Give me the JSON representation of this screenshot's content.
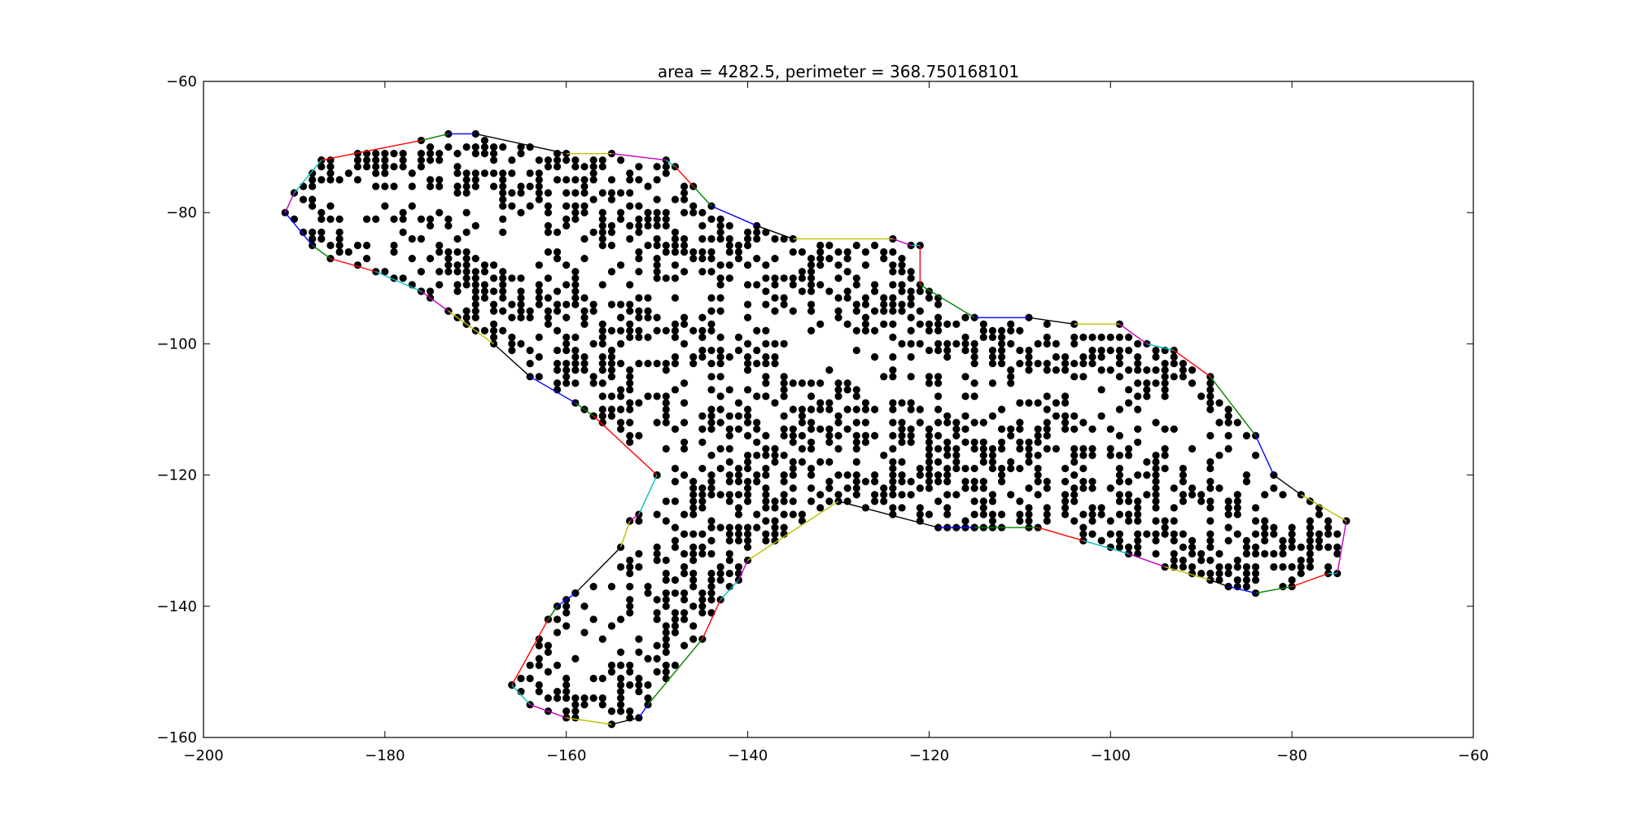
{
  "chart_data": {
    "type": "scatter",
    "title": "area = 4282.5, perimeter = 368.750168101",
    "xlabel": "",
    "ylabel": "",
    "xlim": [
      -200,
      -60
    ],
    "ylim": [
      -160,
      -60
    ],
    "x_ticks": [
      -200,
      -180,
      -160,
      -140,
      -120,
      -100,
      -80,
      -60
    ],
    "y_ticks": [
      -60,
      -80,
      -100,
      -120,
      -140,
      -160
    ],
    "grid": false,
    "point_color": "#000000",
    "edge_color_cycle": [
      "#0000ff",
      "#008000",
      "#ff0000",
      "#00bfbf",
      "#bf00bf",
      "#bfbf00",
      "#000000"
    ],
    "hull": [
      [
        -191,
        -80
      ],
      [
        -188,
        -85
      ],
      [
        -186,
        -87
      ],
      [
        -181,
        -89
      ],
      [
        -176,
        -92
      ],
      [
        -173,
        -95
      ],
      [
        -168,
        -100
      ],
      [
        -164,
        -105
      ],
      [
        -159,
        -109
      ],
      [
        -157,
        -111
      ],
      [
        -150,
        -120
      ],
      [
        -152,
        -126
      ],
      [
        -153,
        -127
      ],
      [
        -154,
        -131
      ],
      [
        -159,
        -138
      ],
      [
        -161,
        -140
      ],
      [
        -162,
        -142
      ],
      [
        -166,
        -152
      ],
      [
        -164,
        -155
      ],
      [
        -160,
        -157
      ],
      [
        -155,
        -158
      ],
      [
        -152,
        -157
      ],
      [
        -151,
        -155
      ],
      [
        -145,
        -145
      ],
      [
        -143,
        -139
      ],
      [
        -141,
        -136
      ],
      [
        -140,
        -133
      ],
      [
        -130,
        -124
      ],
      [
        -119,
        -128
      ],
      [
        -115,
        -128
      ],
      [
        -108,
        -128
      ],
      [
        -103,
        -130
      ],
      [
        -98,
        -132
      ],
      [
        -94,
        -134
      ],
      [
        -89,
        -136
      ],
      [
        -87,
        -137
      ],
      [
        -84,
        -138
      ],
      [
        -80,
        -137
      ],
      [
        -76,
        -135
      ],
      [
        -75,
        -135
      ],
      [
        -74,
        -127
      ],
      [
        -79,
        -123
      ],
      [
        -82,
        -120
      ],
      [
        -84,
        -114
      ],
      [
        -89,
        -105
      ],
      [
        -93,
        -101
      ],
      [
        -96,
        -100
      ],
      [
        -99,
        -97
      ],
      [
        -104,
        -97
      ],
      [
        -109,
        -96
      ],
      [
        -115,
        -96
      ],
      [
        -121,
        -91
      ],
      [
        -121,
        -85
      ],
      [
        -122,
        -85
      ],
      [
        -124,
        -84
      ],
      [
        -135,
        -84
      ],
      [
        -139,
        -82
      ],
      [
        -144,
        -79
      ],
      [
        -146,
        -76
      ],
      [
        -148,
        -73
      ],
      [
        -149,
        -72
      ],
      [
        -155,
        -71
      ],
      [
        -160,
        -71
      ],
      [
        -170,
        -68
      ],
      [
        -173,
        -68
      ],
      [
        -176,
        -69
      ],
      [
        -187,
        -72
      ],
      [
        -190,
        -77
      ]
    ],
    "interior_spine": [
      [
        -184,
        -80
      ],
      [
        -170,
        -82
      ],
      [
        -160,
        -88
      ],
      [
        -148,
        -92
      ],
      [
        -136,
        -98
      ],
      [
        -124,
        -104
      ],
      [
        -112,
        -108
      ],
      [
        -100,
        -110
      ],
      [
        -90,
        -116
      ],
      [
        -80,
        -124
      ]
    ],
    "branch_spine": [
      [
        -148,
        -104
      ],
      [
        -150,
        -118
      ],
      [
        -153,
        -134
      ],
      [
        -158,
        -150
      ]
    ]
  }
}
